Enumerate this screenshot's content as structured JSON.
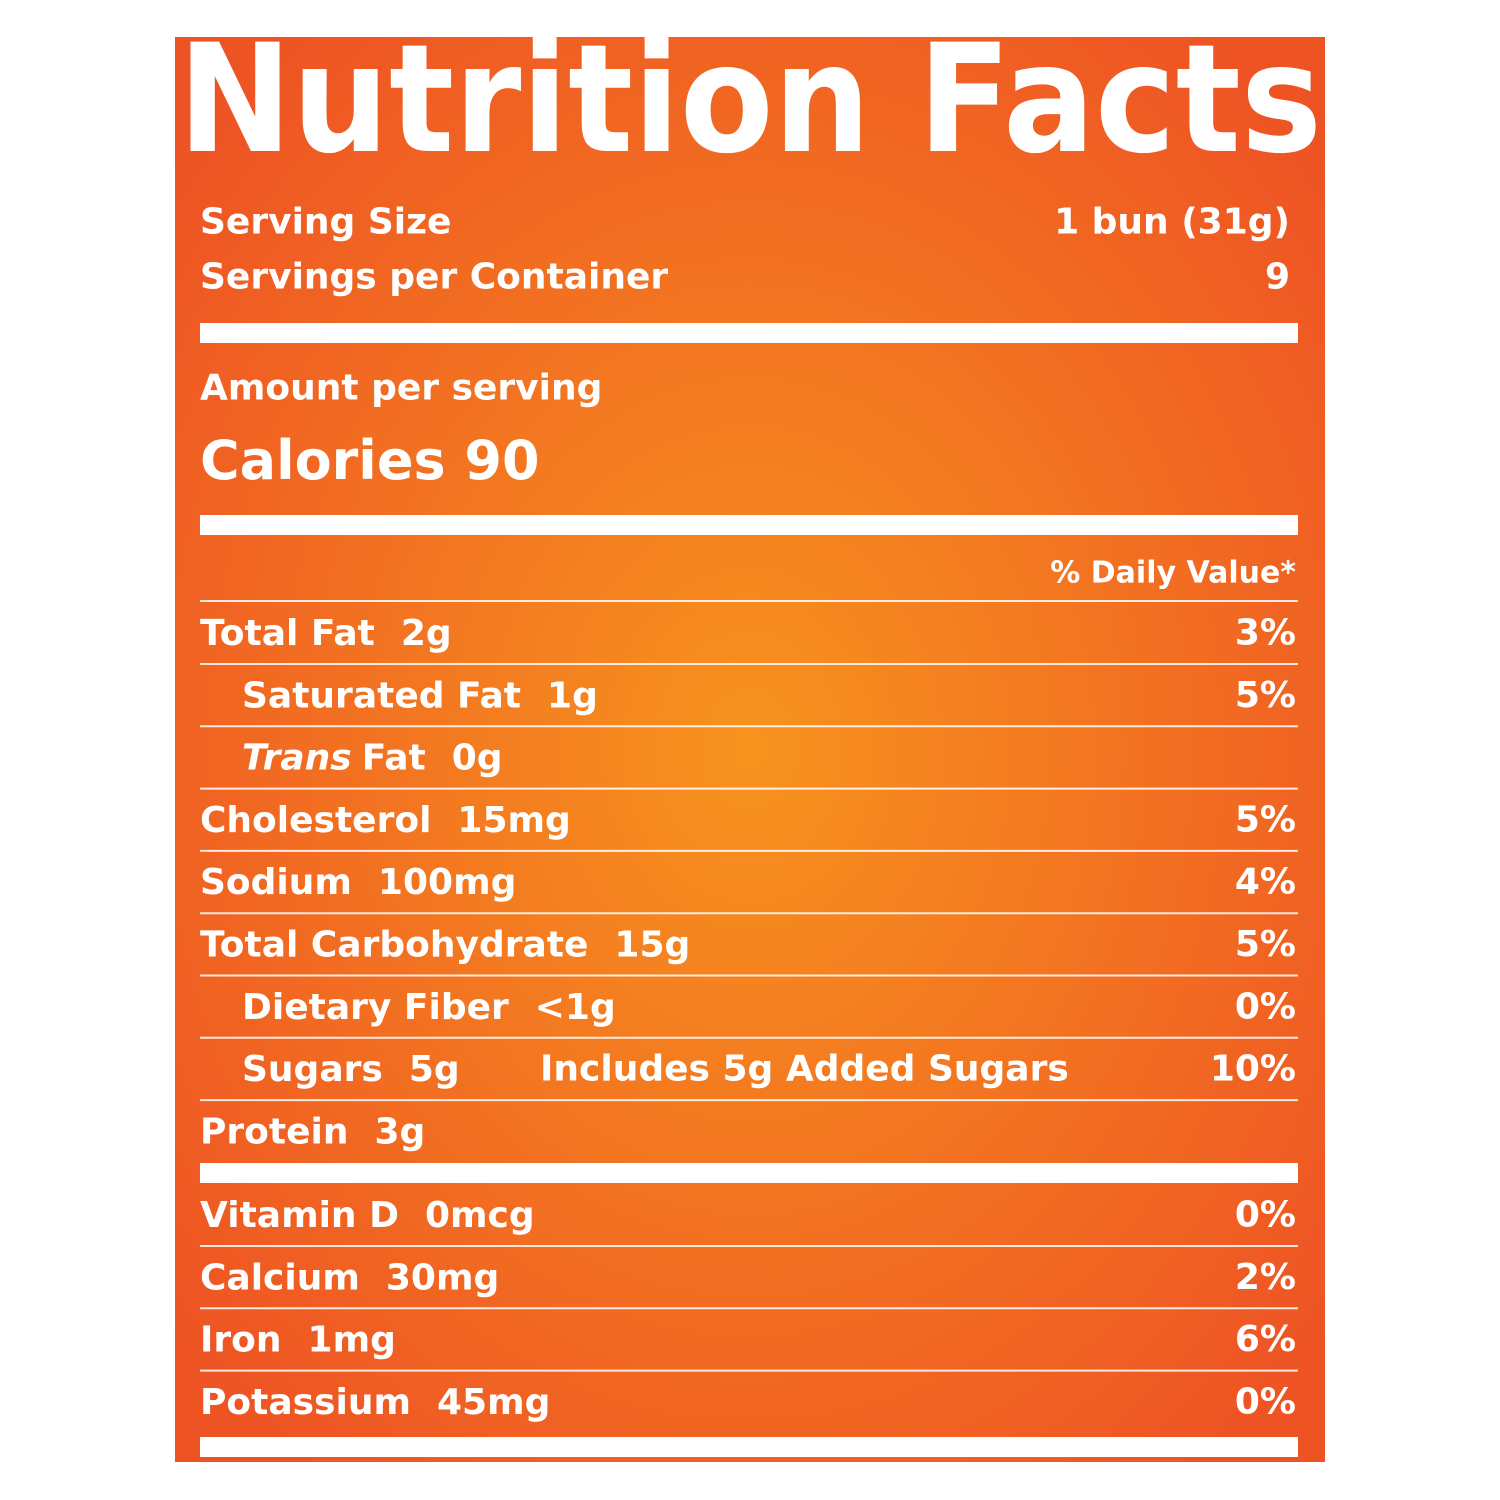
{
  "title": "Nutrition Facts",
  "serving": {
    "size_label": "Serving Size",
    "size_value": "1 bun (31g)",
    "count_label": "Servings per Container",
    "count_value": "9"
  },
  "amount_label": "Amount per serving",
  "calories": {
    "label": "Calories",
    "value": "90"
  },
  "daily_value_header": "% Daily Value*",
  "nutrients": [
    {
      "name": "Total Fat",
      "amount": "2g",
      "dv": "3%",
      "sub": [
        {
          "name": "Saturated Fat",
          "amount": "1g",
          "dv": "5%"
        },
        {
          "name_italic": "Trans",
          "name": "Fat",
          "amount": "0g"
        }
      ]
    },
    {
      "name": "Cholesterol",
      "amount": "15mg",
      "dv": "5%"
    },
    {
      "name": "Sodium",
      "amount": "100mg",
      "dv": "4%"
    },
    {
      "name": "Total Carbohydrate",
      "amount": "15g",
      "dv": "5%",
      "sub": [
        {
          "name": "Dietary Fiber",
          "amount": "<1g",
          "dv": "0%"
        },
        {
          "name": "Sugars",
          "amount": "5g",
          "note": "Includes 5g Added Sugars",
          "dv": "10%"
        }
      ]
    },
    {
      "name": "Protein",
      "amount": "3g"
    }
  ],
  "vitamins": [
    {
      "name": "Vitamin D",
      "amount": "0mcg",
      "dv": "0%"
    },
    {
      "name": "Calcium",
      "amount": "30mg",
      "dv": "2%"
    },
    {
      "name": "Iron",
      "amount": "1mg",
      "dv": "6%"
    },
    {
      "name": "Potassium",
      "amount": "45mg",
      "dv": "0%"
    }
  ]
}
